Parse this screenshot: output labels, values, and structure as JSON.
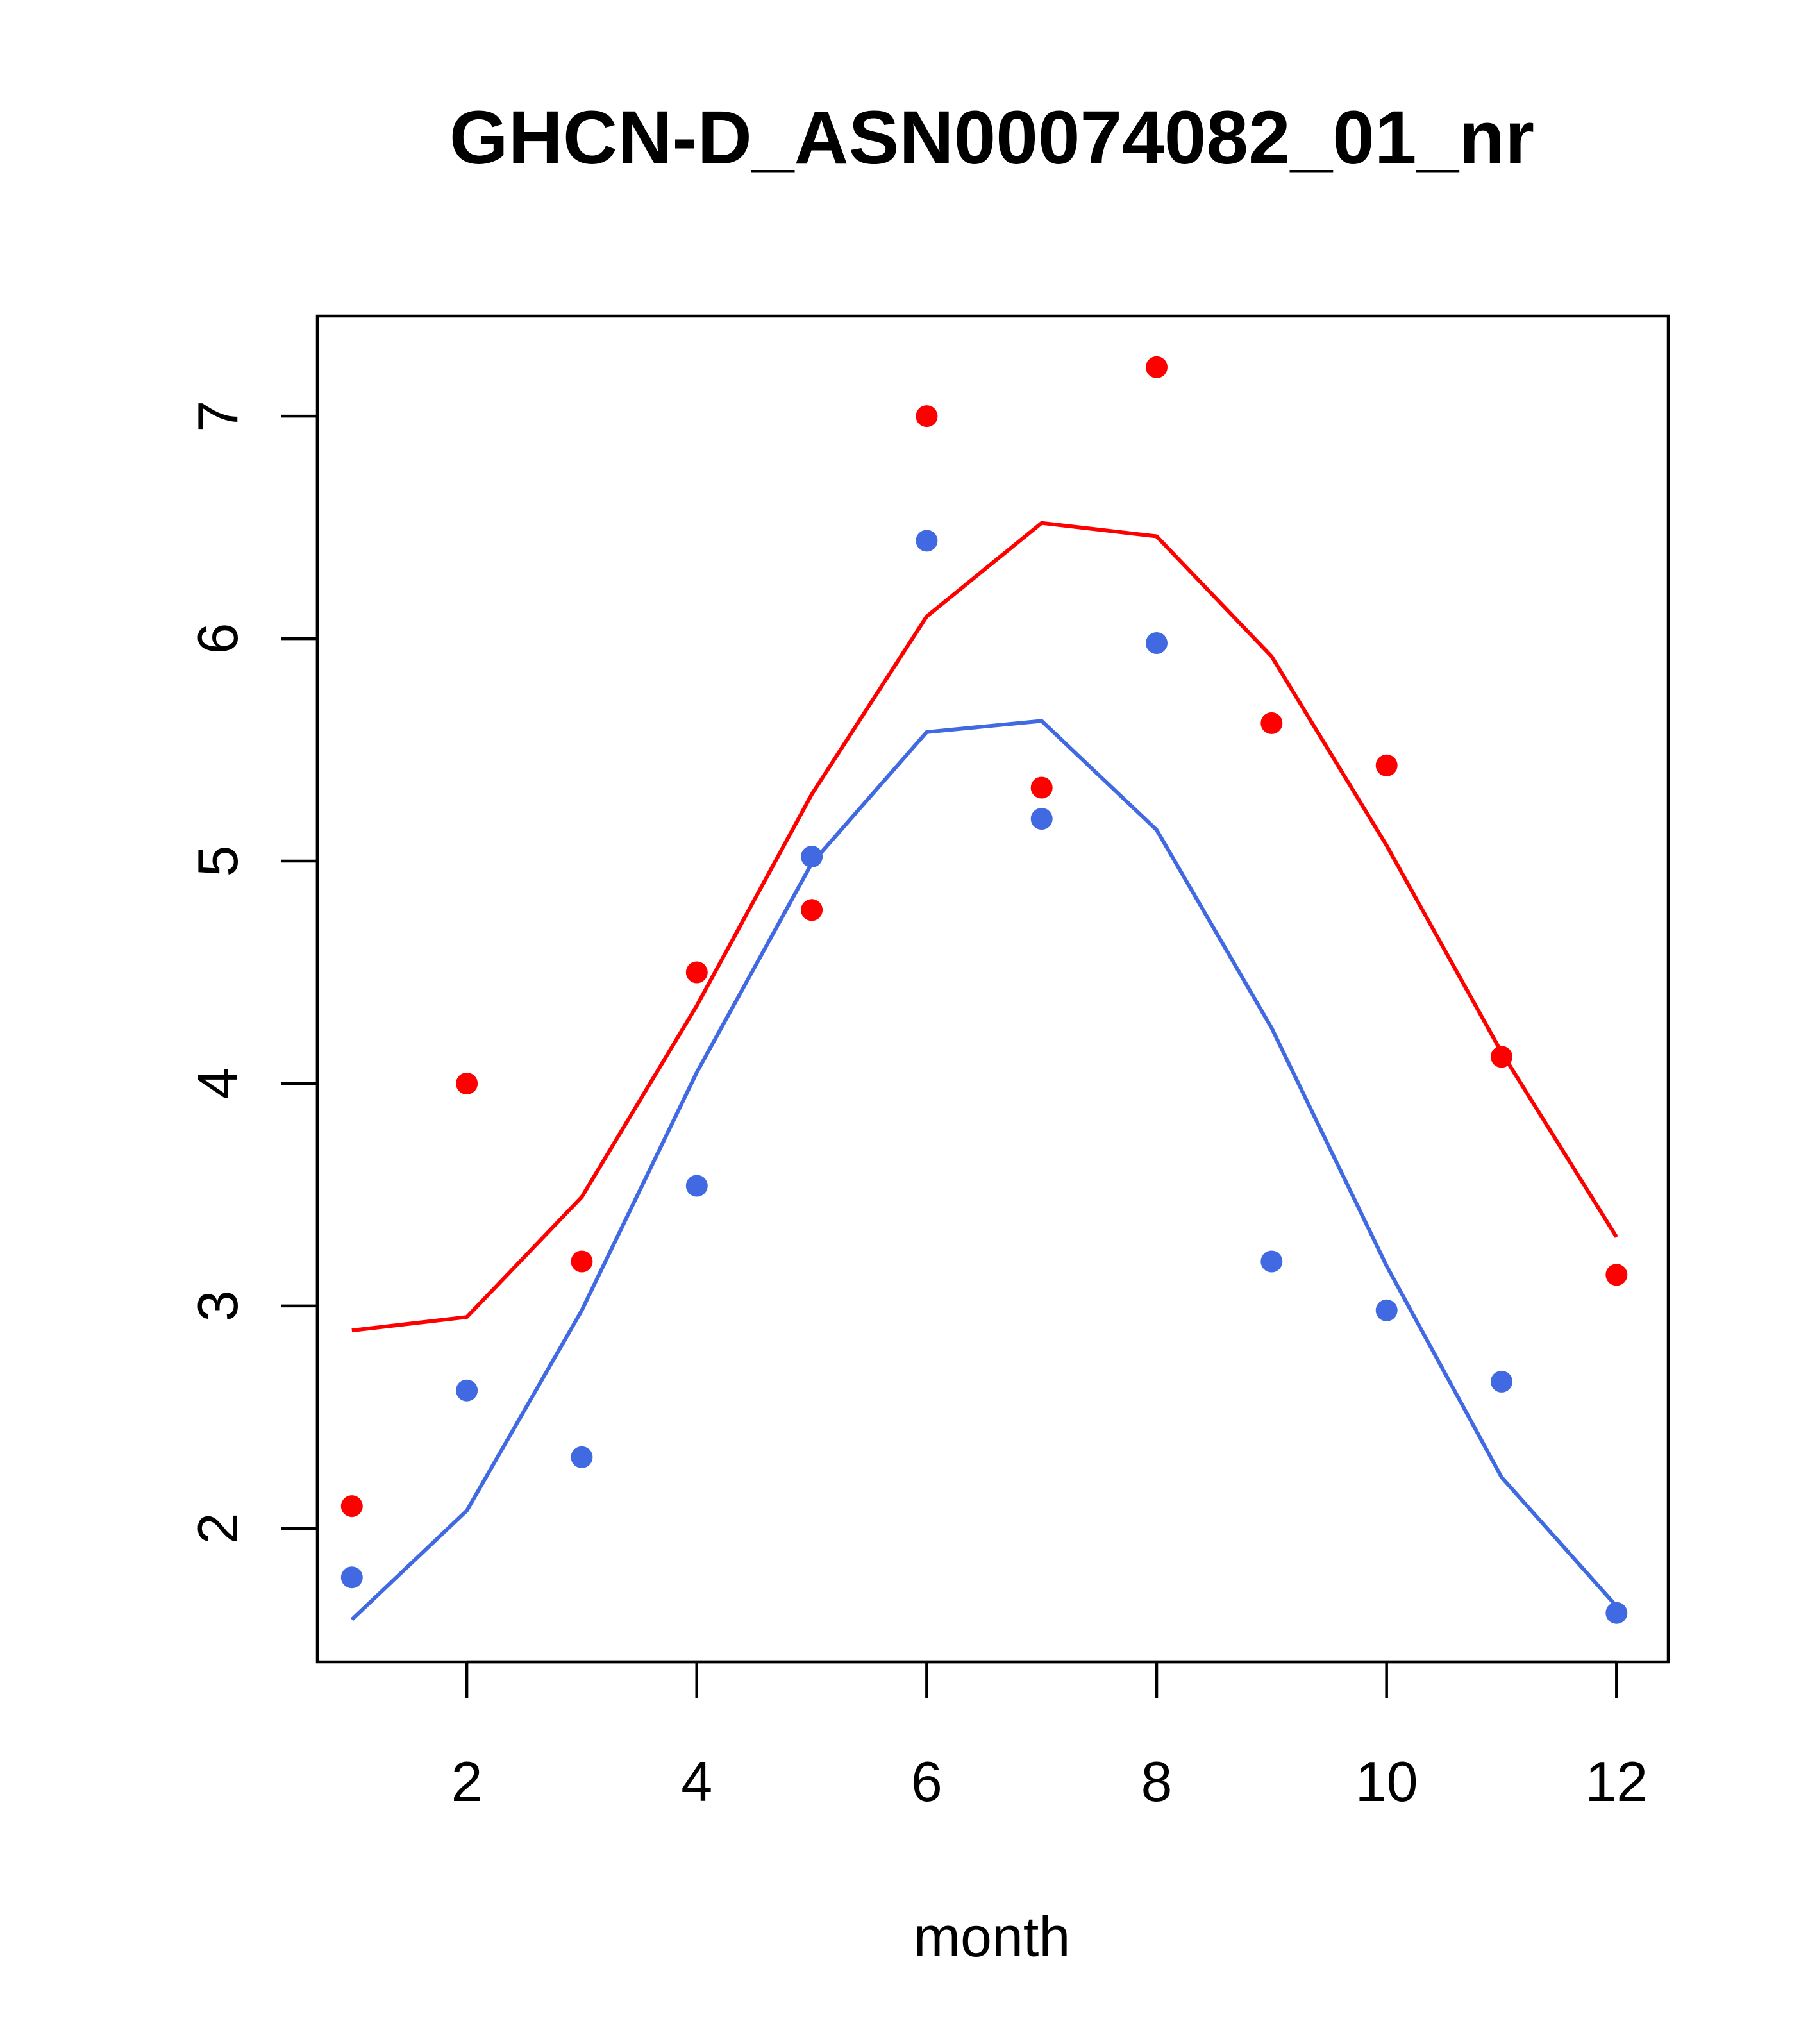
{
  "chart_data": {
    "type": "scatter",
    "title": "GHCN-D_ASN00074082_01_nr",
    "xlabel": "month",
    "ylabel": "",
    "xlim": [
      0.7,
      12.45
    ],
    "ylim": [
      1.4,
      7.45
    ],
    "x_ticks": [
      2,
      4,
      6,
      8,
      10,
      12
    ],
    "y_ticks": [
      2,
      3,
      4,
      5,
      6,
      7
    ],
    "grid": false,
    "legend": "none",
    "series": [
      {
        "kind": "points",
        "color": "#ff0000",
        "x": [
          1,
          2,
          3,
          4,
          5,
          6,
          7,
          8,
          9,
          10,
          11,
          12
        ],
        "y": [
          2.1,
          4.0,
          3.2,
          4.5,
          4.78,
          7.0,
          5.33,
          7.22,
          5.62,
          5.43,
          4.12,
          3.14
        ]
      },
      {
        "kind": "points",
        "color": "#4169e1",
        "x": [
          1,
          2,
          3,
          4,
          5,
          6,
          7,
          8,
          9,
          10,
          11,
          12
        ],
        "y": [
          1.78,
          2.62,
          2.32,
          3.54,
          5.02,
          6.44,
          5.19,
          5.98,
          3.2,
          2.98,
          2.66,
          1.62
        ]
      },
      {
        "kind": "line",
        "color": "#ff0000",
        "x": [
          1,
          2,
          3,
          4,
          5,
          6,
          7,
          8,
          9,
          10,
          11,
          12
        ],
        "y": [
          2.89,
          2.95,
          3.49,
          4.35,
          5.3,
          6.1,
          6.52,
          6.46,
          5.92,
          5.07,
          4.14,
          3.31
        ]
      },
      {
        "kind": "line",
        "color": "#4169e1",
        "x": [
          1,
          2,
          3,
          4,
          5,
          6,
          7,
          8,
          9,
          10,
          11,
          12
        ],
        "y": [
          1.59,
          2.08,
          2.98,
          4.05,
          4.99,
          5.58,
          5.63,
          5.14,
          4.25,
          3.18,
          2.23,
          1.65
        ]
      }
    ]
  }
}
